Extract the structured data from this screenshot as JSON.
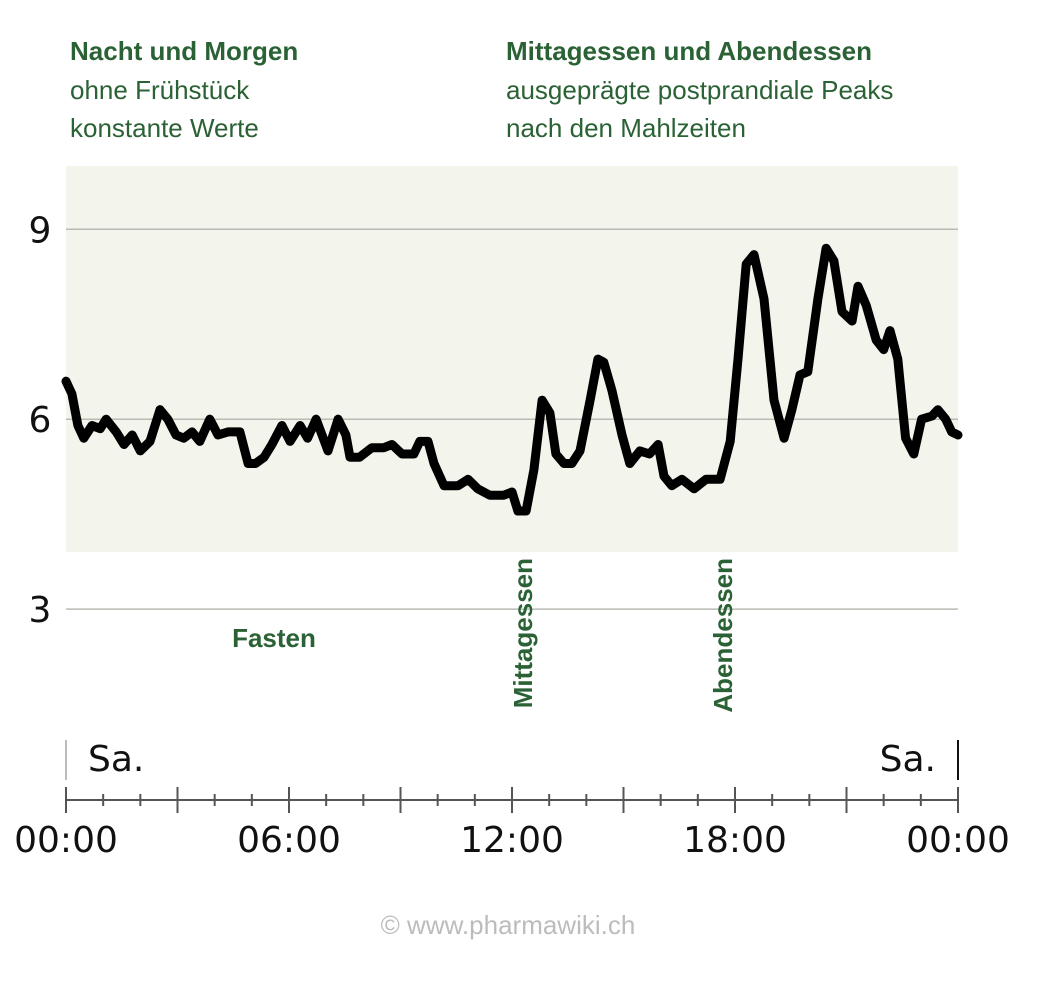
{
  "header": {
    "left": {
      "title": "Nacht und Morgen",
      "lines": [
        "ohne Frühstück",
        "konstante Werte"
      ]
    },
    "right": {
      "title": "Mittagessen und Abendessen",
      "lines": [
        "ausgeprägte postprandiale Peaks",
        "nach den Mahlzeiten"
      ]
    }
  },
  "chart_data": {
    "type": "line",
    "color": "#000000",
    "band": [
      3.9,
      10
    ],
    "band_color": "#f3f5ec",
    "x": [
      0,
      0.16,
      0.32,
      0.48,
      0.7,
      0.92,
      1.08,
      1.35,
      1.56,
      1.78,
      2.0,
      2.26,
      2.53,
      2.74,
      2.96,
      3.17,
      3.39,
      3.6,
      3.87,
      4.09,
      4.36,
      4.68,
      4.9,
      5.1,
      5.33,
      5.54,
      5.81,
      6.03,
      6.3,
      6.5,
      6.73,
      7.05,
      7.32,
      7.53,
      7.64,
      7.9,
      8.23,
      8.55,
      8.77,
      9.04,
      9.36,
      9.52,
      9.74,
      9.9,
      10.17,
      10.55,
      10.82,
      11.08,
      11.4,
      11.78,
      12.0,
      12.16,
      12.38,
      12.59,
      12.81,
      13.02,
      13.18,
      13.4,
      13.61,
      13.83,
      14.1,
      14.31,
      14.47,
      14.69,
      14.96,
      15.17,
      15.44,
      15.7,
      15.93,
      16.09,
      16.3,
      16.57,
      16.9,
      17.22,
      17.6,
      17.87,
      18.08,
      18.3,
      18.51,
      18.78,
      19.05,
      19.32,
      19.53,
      19.75,
      19.96,
      20.23,
      20.45,
      20.66,
      20.88,
      21.15,
      21.31,
      21.53,
      21.8,
      22.0,
      22.17,
      22.38,
      22.59,
      22.81,
      23.02,
      23.3,
      23.46,
      23.67,
      23.83,
      24.0
    ],
    "values": [
      6.6,
      6.4,
      5.9,
      5.7,
      5.9,
      5.85,
      6.0,
      5.8,
      5.6,
      5.75,
      5.5,
      5.65,
      6.15,
      6.0,
      5.75,
      5.7,
      5.8,
      5.65,
      6.0,
      5.75,
      5.8,
      5.8,
      5.3,
      5.3,
      5.4,
      5.6,
      5.9,
      5.65,
      5.9,
      5.7,
      6.0,
      5.5,
      6.0,
      5.75,
      5.4,
      5.4,
      5.55,
      5.55,
      5.6,
      5.45,
      5.45,
      5.65,
      5.65,
      5.3,
      4.95,
      4.95,
      5.05,
      4.9,
      4.8,
      4.8,
      4.85,
      4.55,
      4.55,
      5.2,
      6.3,
      6.1,
      5.45,
      5.3,
      5.3,
      5.5,
      6.3,
      6.95,
      6.9,
      6.45,
      5.75,
      5.3,
      5.5,
      5.45,
      5.6,
      5.1,
      4.95,
      5.05,
      4.9,
      5.05,
      5.05,
      5.65,
      6.95,
      8.45,
      8.6,
      7.9,
      6.3,
      5.7,
      6.15,
      6.7,
      6.75,
      7.9,
      8.7,
      8.5,
      7.7,
      7.55,
      8.1,
      7.8,
      7.25,
      7.1,
      7.4,
      6.95,
      5.7,
      5.45,
      6.0,
      6.05,
      6.15,
      6.0,
      5.8,
      5.75
    ],
    "xlim": [
      0,
      24
    ],
    "ylim": [
      1,
      10
    ],
    "yticks": [
      3,
      6,
      9
    ],
    "grid": true,
    "xticks": [
      {
        "value": 0,
        "label": "00:00"
      },
      {
        "value": 6,
        "label": "06:00"
      },
      {
        "value": 12,
        "label": "12:00"
      },
      {
        "value": 18,
        "label": "18:00"
      },
      {
        "value": 24,
        "label": "00:00"
      }
    ],
    "xminor_ticks": [
      1,
      2,
      3,
      4,
      5,
      7,
      8,
      9,
      10,
      11,
      13,
      14,
      15,
      16,
      17,
      19,
      20,
      21,
      22,
      23
    ],
    "day_labels": [
      "Sa.",
      "Sa."
    ],
    "annotations": [
      "Fasten",
      "Mittagessen",
      "Abendessen"
    ]
  },
  "footer": "© www.pharmawiki.ch"
}
